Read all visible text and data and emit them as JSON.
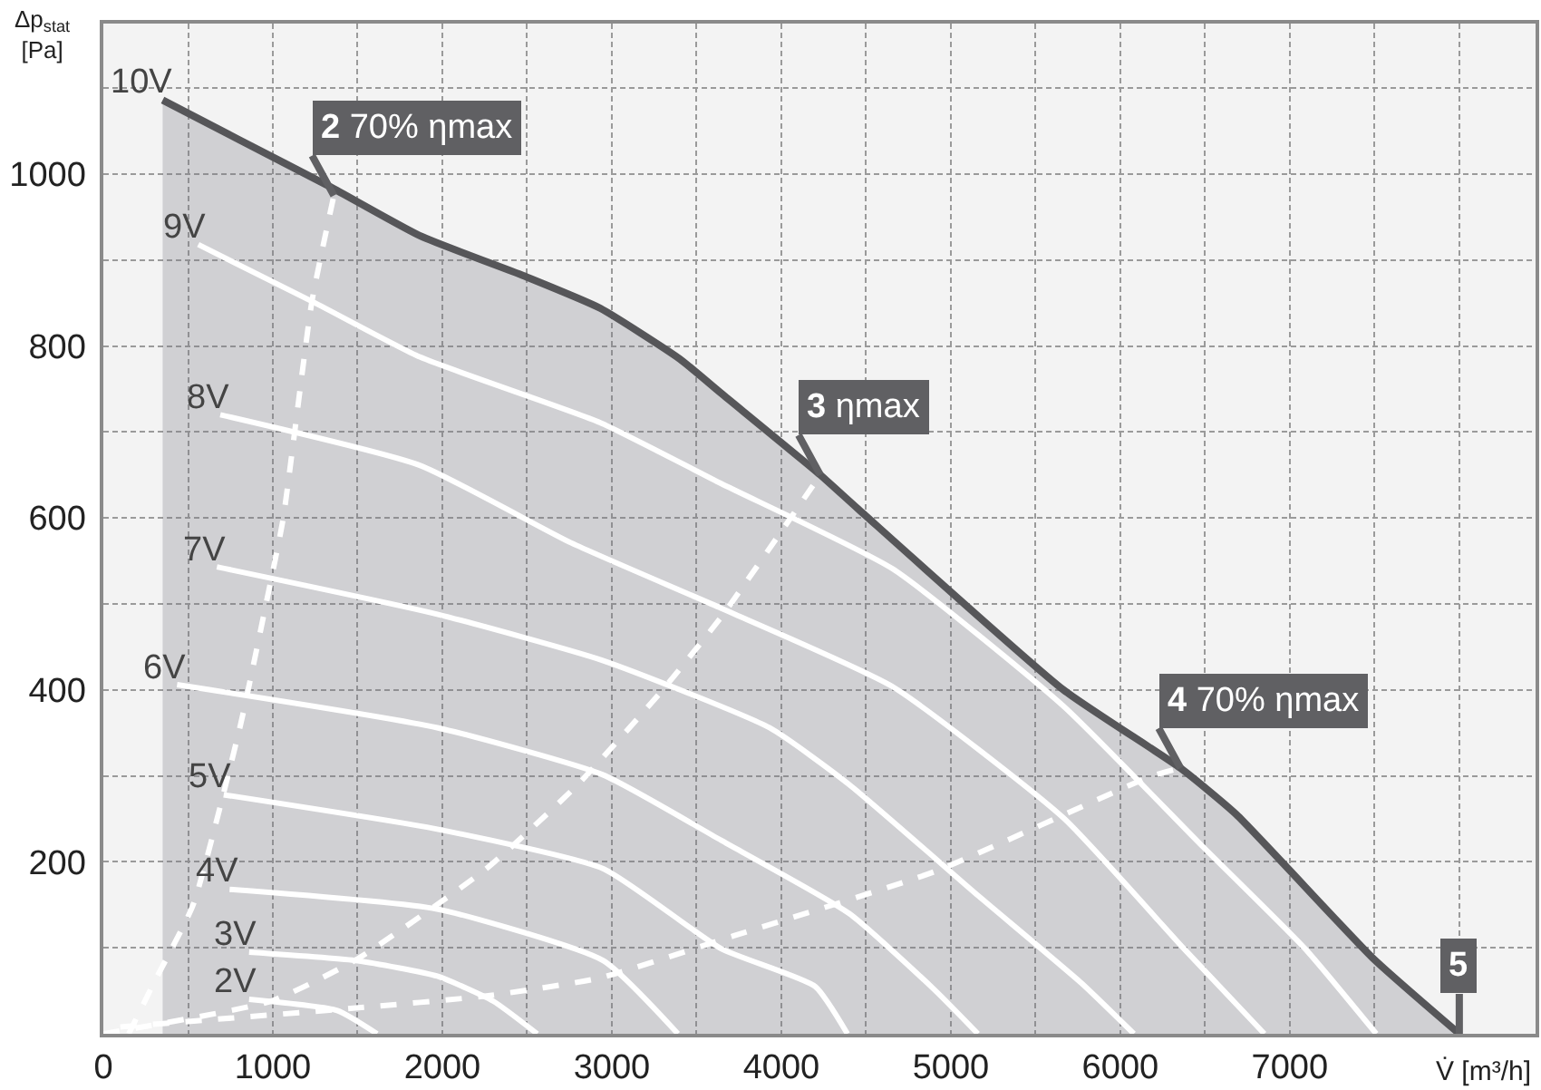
{
  "chart_data": {
    "type": "line",
    "ylabel": "Δp$_{stat}$\n[Pa]",
    "xlabel": "V̇ [m³/h]",
    "xlim": [
      0,
      8450
    ],
    "ylim": [
      0,
      1175
    ],
    "xticks": [
      0,
      {
        "value": 500,
        "label": null
      },
      1000,
      {
        "value": 1500,
        "label": null
      },
      2000,
      {
        "value": 2500,
        "label": null
      },
      3000,
      {
        "value": 3500,
        "label": null
      },
      4000,
      {
        "value": 4500,
        "label": null
      },
      5000,
      {
        "value": 5500,
        "label": null
      },
      6000,
      {
        "value": 6500,
        "label": null
      },
      7000,
      {
        "value": 7500,
        "label": null
      },
      {
        "value": 8000,
        "label": null
      }
    ],
    "yticks": [
      {
        "value": 100,
        "label": null
      },
      200,
      {
        "value": 300,
        "label": null
      },
      400,
      {
        "value": 500,
        "label": null
      },
      600,
      {
        "value": 700,
        "label": null
      },
      800,
      {
        "value": 900,
        "label": null
      },
      1000,
      {
        "value": 1100,
        "label": null
      }
    ],
    "grid": true,
    "legend": false,
    "series": [
      {
        "name": "10V",
        "type": "area",
        "color": "#565659",
        "x": [
          350,
          800,
          1340,
          1870,
          2500,
          2930,
          3400,
          3645,
          4230,
          4450,
          5665,
          6355,
          6685,
          7490,
          8000
        ],
        "values": [
          1086,
          1040,
          985,
          928,
          880,
          844,
          785,
          745,
          650,
          611,
          400,
          309,
          255,
          88,
          0
        ]
      },
      {
        "name": "9V",
        "color": "#ffffff",
        "x": [
          560,
          1250,
          1870,
          2930,
          3645,
          4655,
          5665,
          6480,
          7090,
          7510
        ],
        "values": [
          918,
          850,
          787,
          711,
          640,
          541,
          381,
          219,
          99,
          0
        ]
      },
      {
        "name": "8V",
        "color": "#ffffff",
        "x": [
          690,
          1870,
          2760,
          3645,
          4655,
          5665,
          6375,
          6850
        ],
        "values": [
          720,
          661,
          571,
          495,
          404,
          251,
          99,
          0
        ]
      },
      {
        "name": "7V",
        "color": "#ffffff",
        "x": [
          670,
          1970,
          2950,
          3930,
          4400,
          5165,
          5770,
          6080
        ],
        "values": [
          543,
          488,
          434,
          356,
          290,
          160,
          59,
          0
        ]
      },
      {
        "name": "6V",
        "color": "#ffffff",
        "x": [
          435,
          1970,
          2950,
          3645,
          4400,
          4910,
          5160
        ],
        "values": [
          406,
          356,
          301,
          225,
          140,
          50,
          0
        ]
      },
      {
        "name": "5V",
        "color": "#ffffff",
        "x": [
          710,
          1970,
          2950,
          3645,
          4200,
          4390
        ],
        "values": [
          278,
          238,
          192,
          99,
          55,
          0
        ]
      },
      {
        "name": "4V",
        "color": "#ffffff",
        "x": [
          745,
          1970,
          2950,
          3390
        ],
        "values": [
          168,
          145,
          85,
          0
        ]
      },
      {
        "name": "3V",
        "color": "#ffffff",
        "x": [
          860,
          1500,
          1970,
          2300,
          2560
        ],
        "values": [
          95,
          85,
          67,
          38,
          0
        ]
      },
      {
        "name": "2V",
        "color": "#ffffff",
        "x": [
          860,
          1380,
          1615
        ],
        "values": [
          40,
          27,
          0
        ]
      },
      {
        "color": "#ffffff",
        "line_style": "dashed",
        "x": [
          150,
          300,
          530,
          810,
          960,
          1060,
          1230,
          1360
        ],
        "values": [
          0,
          60,
          150,
          360,
          500,
          598,
          851,
          975
        ]
      },
      {
        "color": "#ffffff",
        "line_style": "dashed",
        "x": [
          0,
          990,
          1490,
          2260,
          2800,
          3300,
          3650,
          4230
        ],
        "values": [
          0,
          38,
          86,
          192,
          290,
          400,
          486,
          650
        ]
      },
      {
        "color": "#ffffff",
        "line_style": "dashed",
        "x": [
          100,
          1490,
          2260,
          2930,
          3720,
          4910,
          6175,
          6355
        ],
        "values": [
          8,
          30,
          44,
          65,
          114,
          189,
          299,
          309
        ]
      }
    ],
    "annotations": [
      {
        "text": "2 70% ηmax",
        "x": 1360,
        "y": 975
      },
      {
        "text": "3 ηmax",
        "x": 4230,
        "y": 650
      },
      {
        "text": "4 70% ηmax",
        "x": 6355,
        "y": 309
      },
      {
        "text": "5",
        "x": 8000,
        "y": 0
      }
    ]
  }
}
